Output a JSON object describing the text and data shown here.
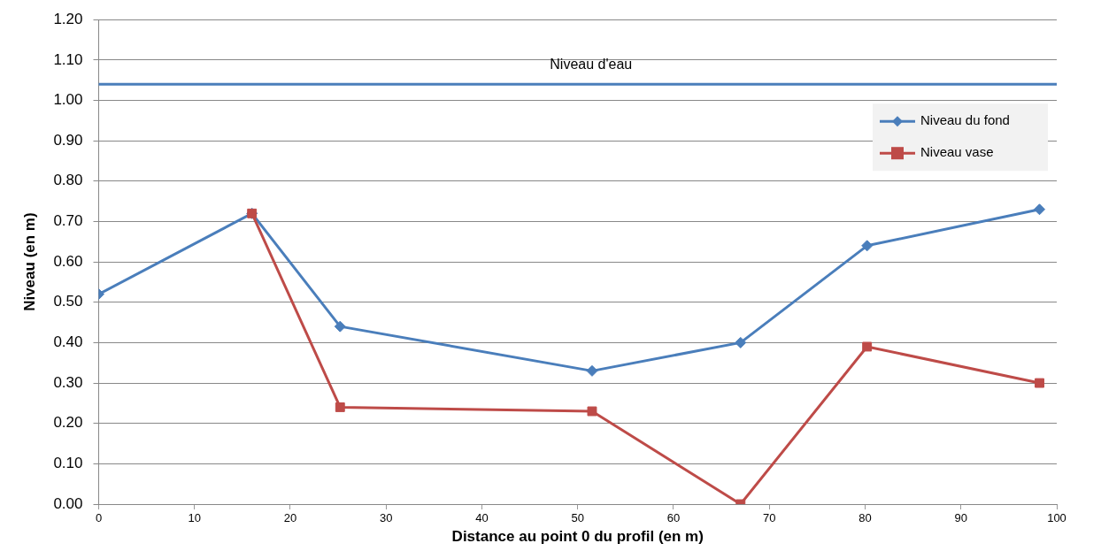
{
  "chart_data": {
    "type": "line",
    "xlabel": "Distance au point 0 du profil (en m)",
    "ylabel": "Niveau (en m)",
    "xlim": [
      0,
      100
    ],
    "xticks": [
      0,
      10,
      20,
      30,
      40,
      50,
      60,
      70,
      80,
      90,
      100
    ],
    "ylim": [
      0,
      1.2
    ],
    "yticks": [
      {
        "value": 0,
        "label": "0.00"
      },
      {
        "value": 0.1,
        "label": "0.10"
      },
      {
        "value": 0.2,
        "label": "0.20"
      },
      {
        "value": 0.3,
        "label": "0.30"
      },
      {
        "value": 0.4,
        "label": "0.40"
      },
      {
        "value": 0.5,
        "label": "0.50"
      },
      {
        "value": 0.6,
        "label": "0.60"
      },
      {
        "value": 0.7,
        "label": "0.70"
      },
      {
        "value": 0.8,
        "label": "0.80"
      },
      {
        "value": 0.9,
        "label": "0.90"
      },
      {
        "value": 1.0,
        "label": "1.00"
      },
      {
        "value": 1.1,
        "label": "1.10"
      },
      {
        "value": 1.2,
        "label": "1.20"
      }
    ],
    "grid": "y",
    "legend": "top right",
    "series": [
      {
        "name": "Niveau du fond",
        "color": "#4a7ebb",
        "marker": "diamond",
        "x": [
          0,
          16,
          25.2,
          51.5,
          67,
          80.2,
          98.2
        ],
        "values": [
          0.52,
          0.72,
          0.44,
          0.33,
          0.4,
          0.64,
          0.73
        ]
      },
      {
        "name": "Niveau vase",
        "color": "#be4b48",
        "marker": "square",
        "x": [
          16,
          25.2,
          51.5,
          67,
          80.2,
          98.2
        ],
        "values": [
          0.72,
          0.24,
          0.23,
          0,
          0.39,
          0.3
        ]
      }
    ],
    "ref_lines": [
      {
        "axis": "y",
        "value": 1.04,
        "label": "Niveau d'eau",
        "color": "#4a7ebb"
      }
    ]
  }
}
